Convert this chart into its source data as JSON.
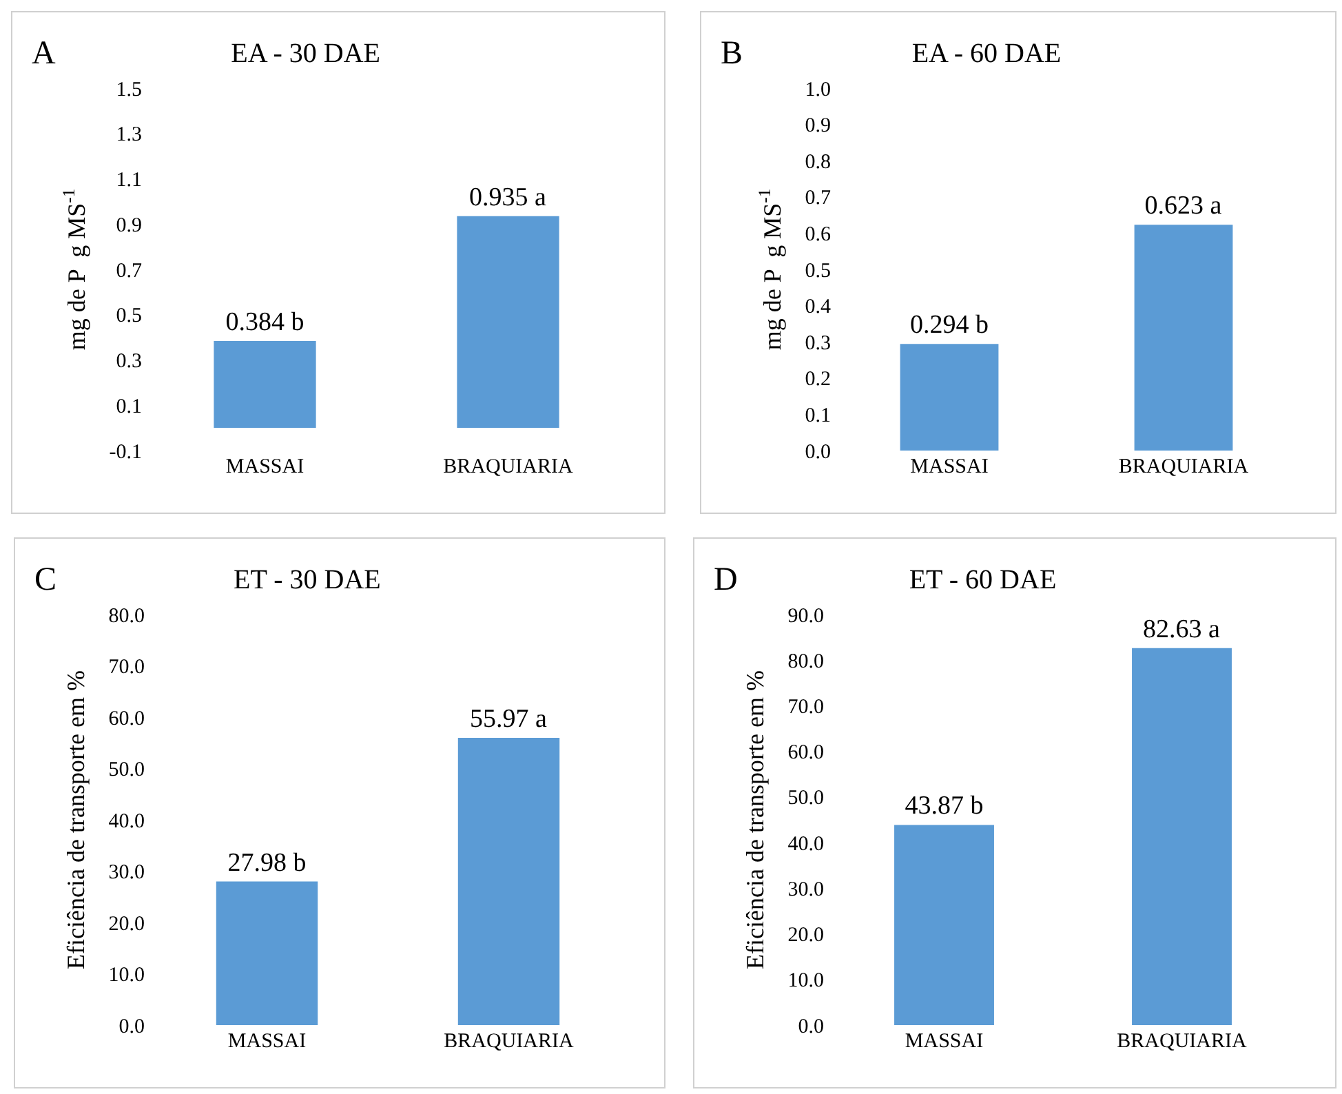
{
  "chart_data": [
    {
      "type": "bar",
      "title": "EA - 30 DAE",
      "ylabel": "mg de P  g MS$^{-1}$",
      "annotations": [
        "A"
      ],
      "categories": [
        "MASSAI",
        "BRAQUIARIA"
      ],
      "values": [
        0.384,
        0.935
      ],
      "value_labels": [
        "0.384 b",
        "0.935 a"
      ],
      "color": "#5b9bd5",
      "ylim": [
        -0.1,
        1.5
      ],
      "yticks": [
        -0.1,
        0.1,
        0.3,
        0.5,
        0.7,
        0.9,
        1.1,
        1.3,
        1.5
      ]
    },
    {
      "type": "bar",
      "title": "EA - 60 DAE",
      "ylabel": "mg de P  g MS$^{-1}$",
      "annotations": [
        "B"
      ],
      "categories": [
        "MASSAI",
        "BRAQUIARIA"
      ],
      "values": [
        0.294,
        0.623
      ],
      "value_labels": [
        "0.294 b",
        "0.623 a"
      ],
      "color": "#5b9bd5",
      "ylim": [
        0,
        1.0
      ],
      "yticks": [
        {
          "value": 0,
          "label": "0.0"
        },
        0.1,
        0.2,
        0.3,
        0.4,
        0.5,
        0.6,
        0.7,
        0.8,
        0.9,
        {
          "value": 1,
          "label": "1.0"
        }
      ]
    },
    {
      "type": "bar",
      "title": "ET - 30 DAE",
      "ylabel": "Eficiência de transporte em %",
      "annotations": [
        "C"
      ],
      "categories": [
        "MASSAI",
        "BRAQUIARIA"
      ],
      "values": [
        27.98,
        55.97
      ],
      "value_labels": [
        "27.98 b",
        "55.97 a"
      ],
      "color": "#5b9bd5",
      "ylim": [
        0,
        80
      ],
      "yticks": [
        {
          "value": 0,
          "label": "0.0"
        },
        {
          "value": 10,
          "label": "10.0"
        },
        {
          "value": 20,
          "label": "20.0"
        },
        {
          "value": 30,
          "label": "30.0"
        },
        {
          "value": 40,
          "label": "40.0"
        },
        {
          "value": 50,
          "label": "50.0"
        },
        {
          "value": 60,
          "label": "60.0"
        },
        {
          "value": 70,
          "label": "70.0"
        },
        {
          "value": 80,
          "label": "80.0"
        }
      ]
    },
    {
      "type": "bar",
      "title": "ET - 60 DAE",
      "ylabel": "Eficiência de transporte em %",
      "annotations": [
        "D"
      ],
      "categories": [
        "MASSAI",
        "BRAQUIARIA"
      ],
      "values": [
        43.87,
        82.63
      ],
      "value_labels": [
        "43.87 b",
        "82.63 a"
      ],
      "color": "#5b9bd5",
      "ylim": [
        0,
        90
      ],
      "yticks": [
        {
          "value": 0,
          "label": "0.0"
        },
        {
          "value": 10,
          "label": "10.0"
        },
        {
          "value": 20,
          "label": "20.0"
        },
        {
          "value": 30,
          "label": "30.0"
        },
        {
          "value": 40,
          "label": "40.0"
        },
        {
          "value": 50,
          "label": "50.0"
        },
        {
          "value": 60,
          "label": "60.0"
        },
        {
          "value": 70,
          "label": "70.0"
        },
        {
          "value": 80,
          "label": "80.0"
        },
        {
          "value": 90,
          "label": "90.0"
        }
      ]
    }
  ]
}
